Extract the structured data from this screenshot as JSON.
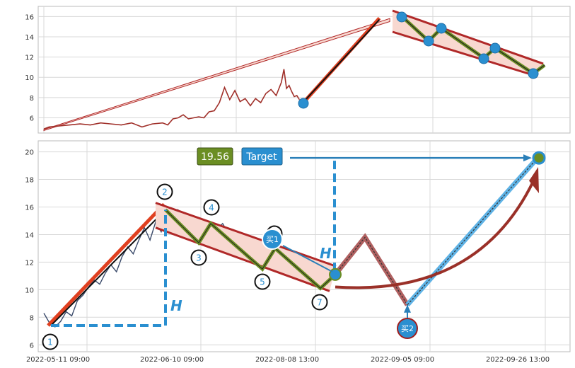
{
  "chart_data": [
    {
      "type": "line",
      "title": "",
      "xlabel": "",
      "ylabel": "",
      "ylim": [
        4.5,
        17.0
      ],
      "y_ticks": [
        6,
        8,
        10,
        12,
        14,
        16
      ],
      "grid": true,
      "series": [
        {
          "values": [
            [
              0,
              4.9
            ],
            [
              0.02,
              5.1
            ],
            [
              0.06,
              5.2
            ],
            [
              0.1,
              5.3
            ],
            [
              0.14,
              5.4
            ],
            [
              0.18,
              5.3
            ],
            [
              0.22,
              5.5
            ],
            [
              0.26,
              5.4
            ],
            [
              0.3,
              5.3
            ],
            [
              0.34,
              5.5
            ],
            [
              0.38,
              5.1
            ],
            [
              0.42,
              5.4
            ],
            [
              0.46,
              5.5
            ],
            [
              0.48,
              5.3
            ],
            [
              0.5,
              5.9
            ],
            [
              0.52,
              6.0
            ],
            [
              0.54,
              6.3
            ],
            [
              0.56,
              5.9
            ],
            [
              0.58,
              6.0
            ],
            [
              0.6,
              6.1
            ],
            [
              0.62,
              6.0
            ],
            [
              0.64,
              6.6
            ],
            [
              0.66,
              6.7
            ],
            [
              0.68,
              7.5
            ],
            [
              0.7,
              9.0
            ],
            [
              0.72,
              7.8
            ],
            [
              0.74,
              8.7
            ],
            [
              0.76,
              7.6
            ],
            [
              0.78,
              7.9
            ],
            [
              0.8,
              7.2
            ],
            [
              0.82,
              7.9
            ],
            [
              0.84,
              7.5
            ],
            [
              0.86,
              8.4
            ],
            [
              0.88,
              8.8
            ],
            [
              0.9,
              8.2
            ],
            [
              0.92,
              9.5
            ],
            [
              0.93,
              10.8
            ],
            [
              0.94,
              8.9
            ],
            [
              0.95,
              9.2
            ],
            [
              0.96,
              8.6
            ],
            [
              0.97,
              8.1
            ],
            [
              0.98,
              8.2
            ],
            [
              0.99,
              7.8
            ]
          ]
        }
      ],
      "wave_points": [
        [
          1.0,
          7.4
        ],
        [
          1.3,
          15.7
        ],
        [
          1.35,
          13.5
        ],
        [
          1.4,
          14.6
        ],
        [
          1.49,
          11.7
        ],
        [
          1.53,
          12.8
        ],
        [
          1.68,
          10.3
        ]
      ]
    },
    {
      "type": "line",
      "title": "",
      "xlabel": "",
      "ylabel": "",
      "ylim": [
        5.5,
        20.8
      ],
      "y_ticks": [
        6,
        8,
        10,
        12,
        14,
        16,
        18,
        20
      ],
      "x_tick_labels": [
        "2022-05-11 09:00",
        "2022-06-10 09:00",
        "2022-08-08 13:00",
        "2022-09-05 09:00",
        "2022-09-26 13:00"
      ],
      "grid": true,
      "series": [
        {
          "values": [
            [
              0,
              8.3
            ],
            [
              0.02,
              7.6
            ],
            [
              0.04,
              7.3
            ],
            [
              0.06,
              7.7
            ],
            [
              0.08,
              8.4
            ],
            [
              0.1,
              8.1
            ],
            [
              0.12,
              9.2
            ],
            [
              0.14,
              9.6
            ],
            [
              0.16,
              10.2
            ],
            [
              0.18,
              10.7
            ],
            [
              0.2,
              10.4
            ],
            [
              0.22,
              11.2
            ],
            [
              0.24,
              11.8
            ],
            [
              0.26,
              11.3
            ],
            [
              0.28,
              12.4
            ],
            [
              0.3,
              13.1
            ],
            [
              0.32,
              12.6
            ],
            [
              0.34,
              13.6
            ],
            [
              0.36,
              14.5
            ],
            [
              0.38,
              13.6
            ],
            [
              0.4,
              14.9
            ],
            [
              0.42,
              14.2
            ],
            [
              0.44,
              15.5
            ],
            [
              0.46,
              14.6
            ],
            [
              0.48,
              15.8
            ],
            [
              0.5,
              15.4
            ],
            [
              0.52,
              14.8
            ],
            [
              0.54,
              15.1
            ],
            [
              0.56,
              14.2
            ],
            [
              0.58,
              13.6
            ],
            [
              0.6,
              13.9
            ],
            [
              0.62,
              14.4
            ],
            [
              0.64,
              14.8
            ],
            [
              0.66,
              14.1
            ],
            [
              0.68,
              13.5
            ],
            [
              0.7,
              12.8
            ],
            [
              0.72,
              12.3
            ],
            [
              0.74,
              12.6
            ],
            [
              0.76,
              11.9
            ],
            [
              0.78,
              11.7
            ],
            [
              0.8,
              11.9
            ],
            [
              0.82,
              12.6
            ],
            [
              0.84,
              13.2
            ],
            [
              0.86,
              12.3
            ],
            [
              0.88,
              11.7
            ],
            [
              0.9,
              11.1
            ],
            [
              0.92,
              10.8
            ],
            [
              0.94,
              10.5
            ],
            [
              0.96,
              10.3
            ],
            [
              1.0,
              10.1
            ]
          ]
        }
      ],
      "wave_labels": [
        "1",
        "2",
        "3",
        "4",
        "5",
        "6",
        "7"
      ],
      "projection": [
        [
          1.06,
          11.1
        ],
        [
          1.16,
          13.8
        ],
        [
          1.4,
          8.9
        ],
        [
          1.72,
          19.56
        ]
      ],
      "price_label": "19.56",
      "target_label": "Target",
      "h_label": "H",
      "buy_labels": [
        "买1",
        "买2"
      ]
    }
  ],
  "colors": {
    "price_line": "#a0302a",
    "candle": "#3a4a6a",
    "channel": "#b02828",
    "channel_fill": "#f8d8d0",
    "wave": "#6b8e23",
    "marker": "#2a8fd0",
    "price_box": "#6b8e23",
    "target_box": "#2a8fd0",
    "h_line": "#2a8fd0",
    "grid": "#d8d8d8"
  }
}
